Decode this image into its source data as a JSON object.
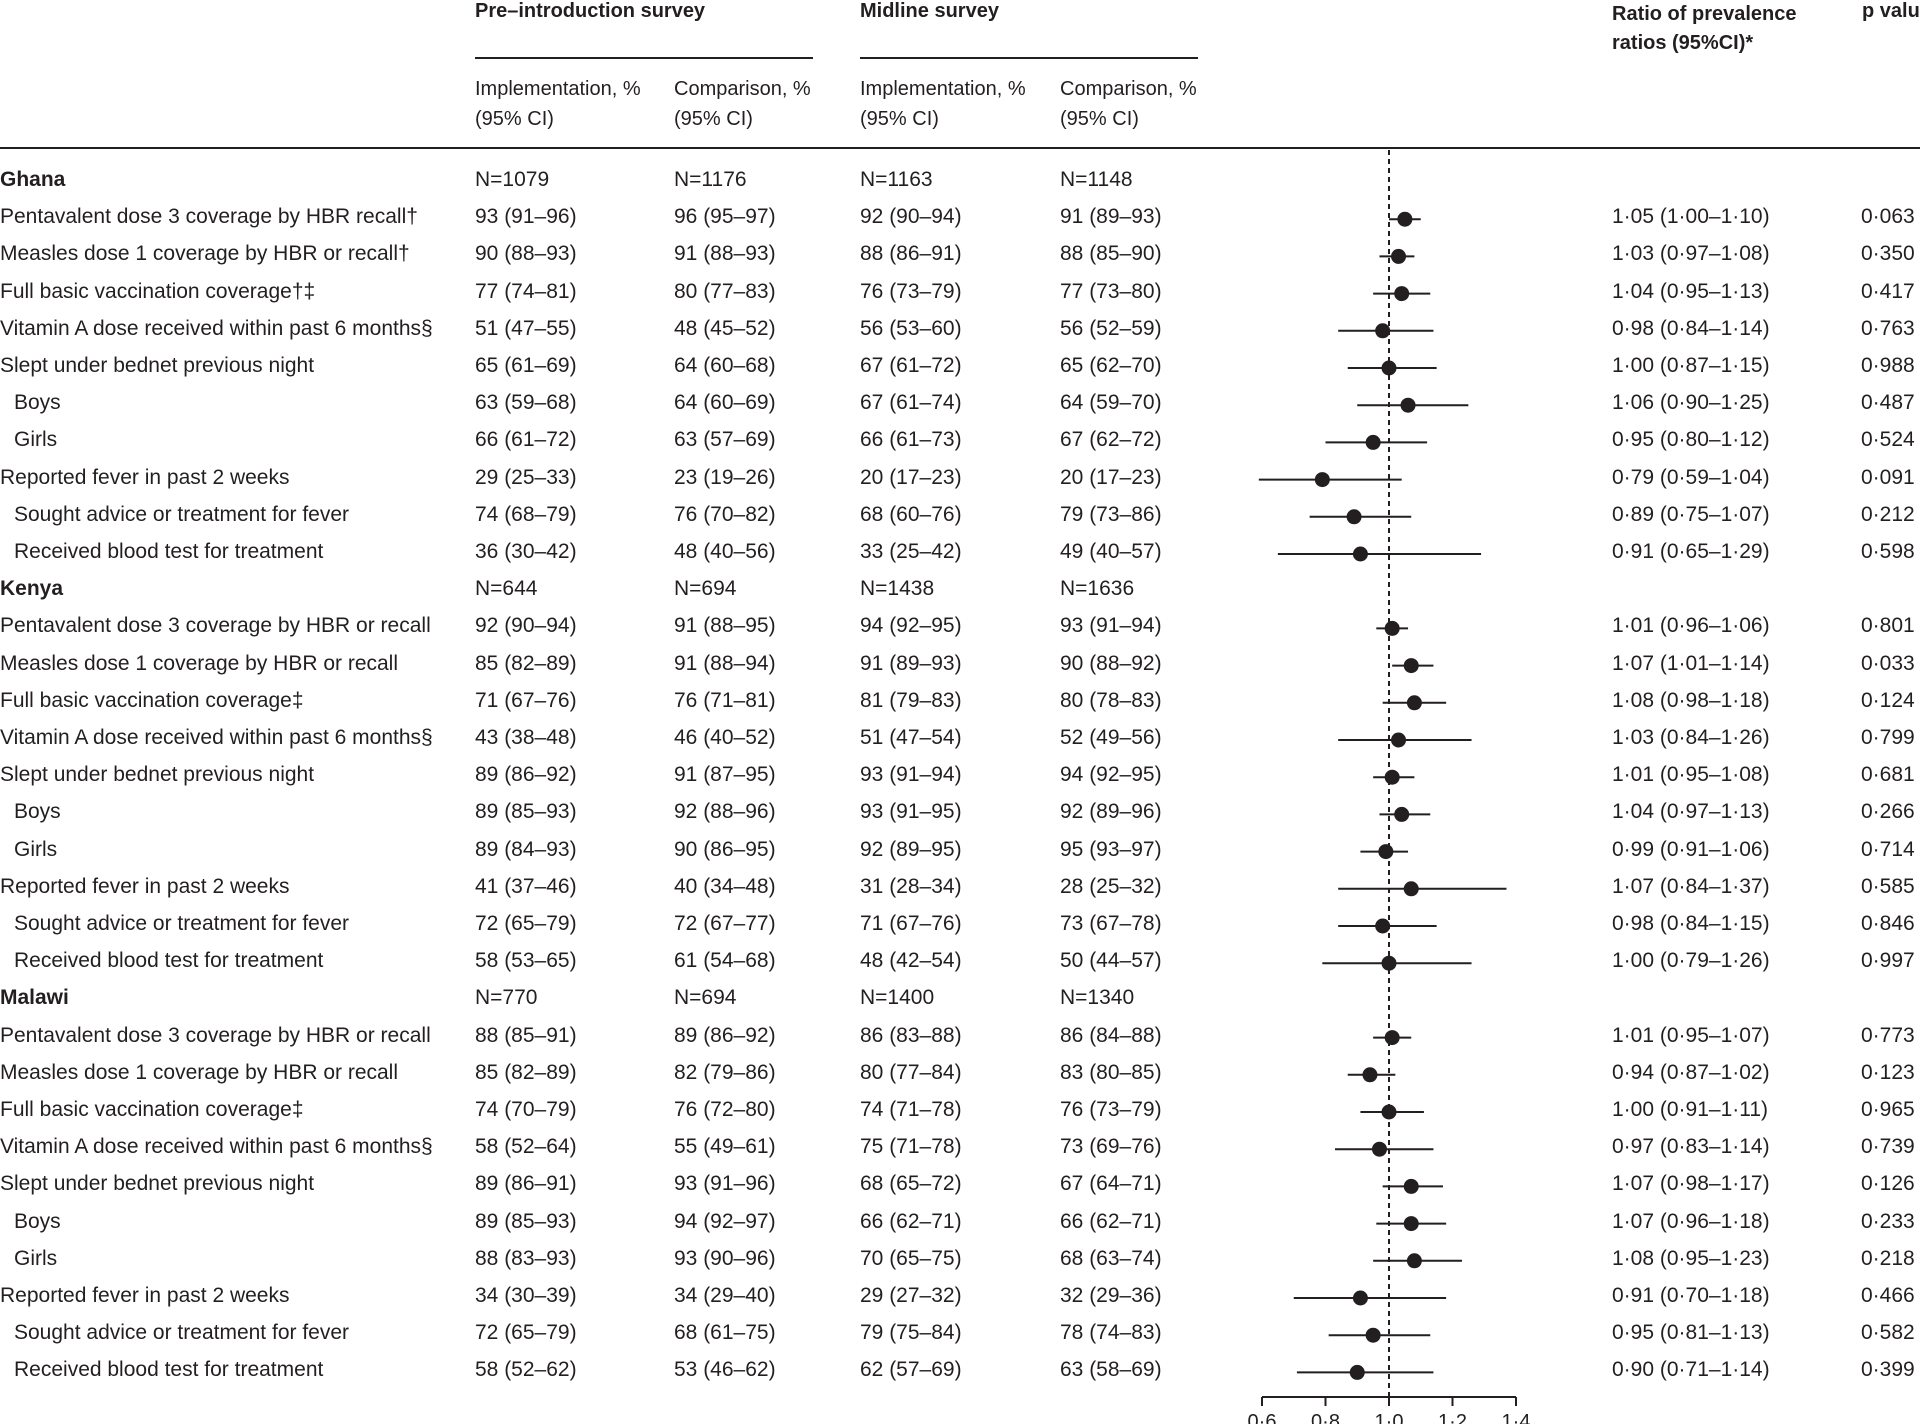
{
  "header": {
    "pre_title": "Pre–introduction survey",
    "mid_title": "Midline survey",
    "ratio_title": "Ratio of prevalence ratios (95%CI)*",
    "p_title": "p value",
    "impl_label": "Implementation, % (95% CI)",
    "comp_label": "Comparison, % (95% CI)"
  },
  "chart_data": {
    "type": "forest",
    "xlabel": "",
    "xlim": [
      0.6,
      1.4
    ],
    "x_ticks": [
      "0·6",
      "0·8",
      "1·0",
      "1·2",
      "1·4"
    ],
    "x_tick_values": [
      0.6,
      0.8,
      1.0,
      1.2,
      1.4
    ],
    "reference_line": 1.0,
    "rows": [
      {
        "label": "Ghana",
        "country": true,
        "c1": "N=1079",
        "c2": "N=1176",
        "c3": "N=1163",
        "c4": "N=1148"
      },
      {
        "label": "Pentavalent dose 3 coverage by HBR recall†",
        "c1": "93 (91–96)",
        "c2": "96 (95–97)",
        "c3": "92 (90–94)",
        "c4": "91 (89–93)",
        "ratio": "1·05 (1·00–1·10)",
        "p": "0·063",
        "est": 1.05,
        "lo": 1.0,
        "hi": 1.1
      },
      {
        "label": "Measles dose 1 coverage by HBR or recall†",
        "c1": "90 (88–93)",
        "c2": "91 (88–93)",
        "c3": "88 (86–91)",
        "c4": "88 (85–90)",
        "ratio": "1·03 (0·97–1·08)",
        "p": "0·350",
        "est": 1.03,
        "lo": 0.97,
        "hi": 1.08
      },
      {
        "label": "Full basic vaccination coverage†‡",
        "c1": "77 (74–81)",
        "c2": "80 (77–83)",
        "c3": "76 (73–79)",
        "c4": "77 (73–80)",
        "ratio": "1·04 (0·95–1·13)",
        "p": "0·417",
        "est": 1.04,
        "lo": 0.95,
        "hi": 1.13
      },
      {
        "label": "Vitamin A dose received within past 6 months§",
        "c1": "51 (47–55)",
        "c2": "48 (45–52)",
        "c3": "56 (53–60)",
        "c4": "56 (52–59)",
        "ratio": "0·98 (0·84–1·14)",
        "p": "0·763",
        "est": 0.98,
        "lo": 0.84,
        "hi": 1.14
      },
      {
        "label": "Slept under bednet previous night",
        "c1": "65 (61–69)",
        "c2": "64 (60–68)",
        "c3": "67 (61–72)",
        "c4": "65 (62–70)",
        "ratio": "1·00 (0·87–1·15)",
        "p": "0·988",
        "est": 1.0,
        "lo": 0.87,
        "hi": 1.15
      },
      {
        "label": "Boys",
        "indent": true,
        "c1": "63 (59–68)",
        "c2": "64 (60–69)",
        "c3": "67 (61–74)",
        "c4": "64 (59–70)",
        "ratio": "1·06 (0·90–1·25)",
        "p": "0·487",
        "est": 1.06,
        "lo": 0.9,
        "hi": 1.25
      },
      {
        "label": "Girls",
        "indent": true,
        "c1": "66 (61–72)",
        "c2": "63 (57–69)",
        "c3": "66 (61–73)",
        "c4": "67 (62–72)",
        "ratio": "0·95 (0·80–1·12)",
        "p": "0·524",
        "est": 0.95,
        "lo": 0.8,
        "hi": 1.12
      },
      {
        "label": "Reported fever in past 2 weeks",
        "c1": "29 (25–33)",
        "c2": "23 (19–26)",
        "c3": "20 (17–23)",
        "c4": "20 (17–23)",
        "ratio": "0·79 (0·59–1·04)",
        "p": "0·091",
        "est": 0.79,
        "lo": 0.59,
        "hi": 1.04
      },
      {
        "label": "Sought advice or treatment for fever",
        "indent": true,
        "c1": "74 (68–79)",
        "c2": "76 (70–82)",
        "c3": "68 (60–76)",
        "c4": "79 (73–86)",
        "ratio": "0·89 (0·75–1·07)",
        "p": "0·212",
        "est": 0.89,
        "lo": 0.75,
        "hi": 1.07
      },
      {
        "label": "Received blood test for treatment",
        "indent": true,
        "c1": "36 (30–42)",
        "c2": "48 (40–56)",
        "c3": "33 (25–42)",
        "c4": "49 (40–57)",
        "ratio": "0·91 (0·65–1·29)",
        "p": "0·598",
        "est": 0.91,
        "lo": 0.65,
        "hi": 1.29
      },
      {
        "label": "Kenya",
        "country": true,
        "c1": "N=644",
        "c2": "N=694",
        "c3": "N=1438",
        "c4": "N=1636"
      },
      {
        "label": "Pentavalent dose 3 coverage by HBR or recall",
        "c1": "92 (90–94)",
        "c2": "91 (88–95)",
        "c3": "94 (92–95)",
        "c4": "93 (91–94)",
        "ratio": "1·01 (0·96–1·06)",
        "p": "0·801",
        "est": 1.01,
        "lo": 0.96,
        "hi": 1.06
      },
      {
        "label": "Measles dose 1 coverage by HBR or recall",
        "c1": "85 (82–89)",
        "c2": "91 (88–94)",
        "c3": "91 (89–93)",
        "c4": "90 (88–92)",
        "ratio": "1·07 (1·01–1·14)",
        "p": "0·033",
        "est": 1.07,
        "lo": 1.01,
        "hi": 1.14
      },
      {
        "label": "Full basic vaccination coverage‡",
        "c1": "71 (67–76)",
        "c2": "76 (71–81)",
        "c3": "81 (79–83)",
        "c4": "80 (78–83)",
        "ratio": "1·08 (0·98–1·18)",
        "p": "0·124",
        "est": 1.08,
        "lo": 0.98,
        "hi": 1.18
      },
      {
        "label": "Vitamin A dose received within past 6 months§",
        "c1": "43 (38–48)",
        "c2": "46 (40–52)",
        "c3": "51 (47–54)",
        "c4": "52 (49–56)",
        "ratio": "1·03 (0·84–1·26)",
        "p": "0·799",
        "est": 1.03,
        "lo": 0.84,
        "hi": 1.26
      },
      {
        "label": "Slept under bednet previous night",
        "c1": "89 (86–92)",
        "c2": "91 (87–95)",
        "c3": "93 (91–94)",
        "c4": "94 (92–95)",
        "ratio": "1·01 (0·95–1·08)",
        "p": "0·681",
        "est": 1.01,
        "lo": 0.95,
        "hi": 1.08
      },
      {
        "label": "Boys",
        "indent": true,
        "c1": "89 (85–93)",
        "c2": "92 (88–96)",
        "c3": "93 (91–95)",
        "c4": "92 (89–96)",
        "ratio": "1·04 (0·97–1·13)",
        "p": "0·266",
        "est": 1.04,
        "lo": 0.97,
        "hi": 1.13
      },
      {
        "label": "Girls",
        "indent": true,
        "c1": "89 (84–93)",
        "c2": "90 (86–95)",
        "c3": "92 (89–95)",
        "c4": "95 (93–97)",
        "ratio": "0·99 (0·91–1·06)",
        "p": "0·714",
        "est": 0.99,
        "lo": 0.91,
        "hi": 1.06
      },
      {
        "label": "Reported fever in past 2 weeks",
        "c1": "41 (37–46)",
        "c2": "40 (34–48)",
        "c3": "31 (28–34)",
        "c4": "28 (25–32)",
        "ratio": "1·07 (0·84–1·37)",
        "p": "0·585",
        "est": 1.07,
        "lo": 0.84,
        "hi": 1.37
      },
      {
        "label": "Sought advice or treatment for fever",
        "indent": true,
        "c1": "72 (65–79)",
        "c2": "72 (67–77)",
        "c3": "71 (67–76)",
        "c4": "73 (67–78)",
        "ratio": "0·98 (0·84–1·15)",
        "p": "0·846",
        "est": 0.98,
        "lo": 0.84,
        "hi": 1.15
      },
      {
        "label": "Received blood test for treatment",
        "indent": true,
        "c1": "58 (53–65)",
        "c2": "61 (54–68)",
        "c3": "48 (42–54)",
        "c4": "50 (44–57)",
        "ratio": "1·00 (0·79–1·26)",
        "p": "0·997",
        "est": 1.0,
        "lo": 0.79,
        "hi": 1.26
      },
      {
        "label": "Malawi",
        "country": true,
        "c1": "N=770",
        "c2": "N=694",
        "c3": "N=1400",
        "c4": "N=1340"
      },
      {
        "label": "Pentavalent dose 3 coverage by HBR or recall",
        "c1": "88 (85–91)",
        "c2": "89 (86–92)",
        "c3": "86 (83–88)",
        "c4": "86 (84–88)",
        "ratio": "1·01 (0·95–1·07)",
        "p": "0·773",
        "est": 1.01,
        "lo": 0.95,
        "hi": 1.07
      },
      {
        "label": "Measles dose 1 coverage by HBR or recall",
        "c1": "85 (82–89)",
        "c2": "82 (79–86)",
        "c3": "80 (77–84)",
        "c4": "83 (80–85)",
        "ratio": "0·94 (0·87–1·02)",
        "p": "0·123",
        "est": 0.94,
        "lo": 0.87,
        "hi": 1.02
      },
      {
        "label": "Full basic vaccination coverage‡",
        "c1": "74 (70–79)",
        "c2": "76 (72–80)",
        "c3": "74 (71–78)",
        "c4": "76 (73–79)",
        "ratio": "1·00 (0·91–1·11)",
        "p": "0·965",
        "est": 1.0,
        "lo": 0.91,
        "hi": 1.11
      },
      {
        "label": "Vitamin A dose received within past 6 months§",
        "c1": "58 (52–64)",
        "c2": "55 (49–61)",
        "c3": "75 (71–78)",
        "c4": "73 (69–76)",
        "ratio": "0·97 (0·83–1·14)",
        "p": "0·739",
        "est": 0.97,
        "lo": 0.83,
        "hi": 1.14
      },
      {
        "label": "Slept under bednet previous night",
        "c1": "89 (86–91)",
        "c2": "93 (91–96)",
        "c3": "68 (65–72)",
        "c4": "67 (64–71)",
        "ratio": "1·07 (0·98–1·17)",
        "p": "0·126",
        "est": 1.07,
        "lo": 0.98,
        "hi": 1.17
      },
      {
        "label": "Boys",
        "indent": true,
        "c1": "89 (85–93)",
        "c2": "94 (92–97)",
        "c3": "66 (62–71)",
        "c4": "66 (62–71)",
        "ratio": "1·07 (0·96–1·18)",
        "p": "0·233",
        "est": 1.07,
        "lo": 0.96,
        "hi": 1.18
      },
      {
        "label": "Girls",
        "indent": true,
        "c1": "88 (83–93)",
        "c2": "93 (90–96)",
        "c3": "70 (65–75)",
        "c4": "68 (63–74)",
        "ratio": "1·08 (0·95–1·23)",
        "p": "0·218",
        "est": 1.08,
        "lo": 0.95,
        "hi": 1.23
      },
      {
        "label": "Reported fever in past 2 weeks",
        "c1": "34 (30–39)",
        "c2": "34 (29–40)",
        "c3": "29 (27–32)",
        "c4": "32 (29–36)",
        "ratio": "0·91 (0·70–1·18)",
        "p": "0·466",
        "est": 0.91,
        "lo": 0.7,
        "hi": 1.18
      },
      {
        "label": "Sought advice or treatment for fever",
        "indent": true,
        "c1": "72 (65–79)",
        "c2": "68 (61–75)",
        "c3": "79 (75–84)",
        "c4": "78 (74–83)",
        "ratio": "0·95 (0·81–1·13)",
        "p": "0·582",
        "est": 0.95,
        "lo": 0.81,
        "hi": 1.13
      },
      {
        "label": "Received blood test for treatment",
        "indent": true,
        "c1": "58 (52–62)",
        "c2": "53 (46–62)",
        "c3": "62 (57–69)",
        "c4": "63 (58–69)",
        "ratio": "0·90 (0·71–1·14)",
        "p": "0·399",
        "est": 0.9,
        "lo": 0.71,
        "hi": 1.14
      }
    ]
  }
}
